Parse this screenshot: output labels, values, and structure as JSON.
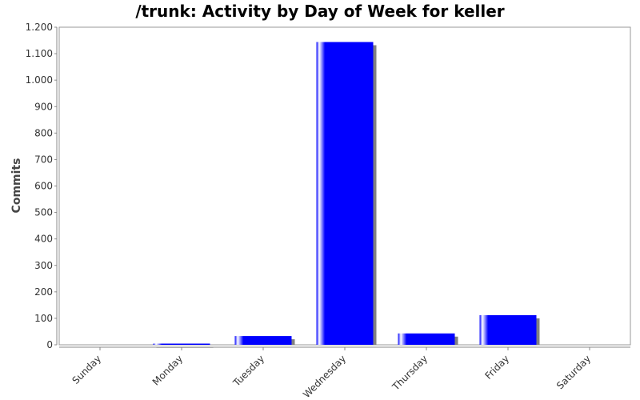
{
  "chart_data": {
    "type": "bar",
    "title": "/trunk: Activity by Day of Week for keller",
    "xlabel": "",
    "ylabel": "Commits",
    "categories": [
      "Sunday",
      "Monday",
      "Tuesday",
      "Wednesday",
      "Thursday",
      "Friday",
      "Saturday"
    ],
    "values": [
      0,
      4,
      33,
      1144,
      43,
      112,
      0
    ],
    "ylim": [
      0,
      1200
    ],
    "yticks": [
      0,
      100,
      200,
      300,
      400,
      500,
      600,
      700,
      800,
      900,
      1000,
      1100,
      1200
    ],
    "ytick_labels": [
      "0",
      "100",
      "200",
      "300",
      "400",
      "500",
      "600",
      "700",
      "800",
      "900",
      "1.000",
      "1.100",
      "1.200"
    ],
    "bar_color": "#0000ff",
    "shadow_color": "#808080",
    "grid": false,
    "legend": "none"
  }
}
